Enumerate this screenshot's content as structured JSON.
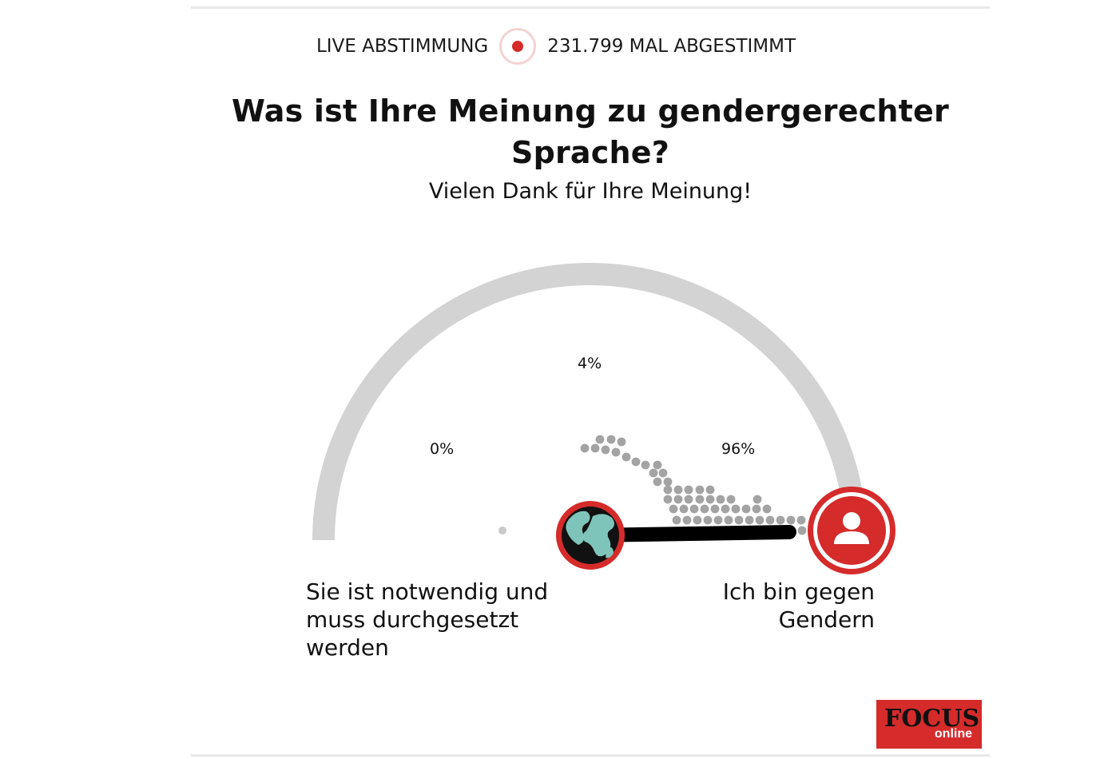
{
  "live": {
    "label": "LIVE ABSTIMMUNG",
    "count_text": "231.799 MAL ABGESTIMMT"
  },
  "poll": {
    "question": "Was ist Ihre Meinung zu gendergerechter Sprache?",
    "thanks": "Vielen Dank für Ihre Meinung!",
    "options": [
      {
        "label": "Sie ist notwendig und muss durchgesetzt werden",
        "percent_text": "0%",
        "percent": 0
      },
      {
        "label": "",
        "percent_text": "4%",
        "percent": 4
      },
      {
        "label": "Ich bin gegen Gendern",
        "percent_text": "96%",
        "percent": 96
      }
    ]
  },
  "icons": {
    "live": "record-dot-icon",
    "globe": "globe-icon",
    "user": "user-icon"
  },
  "colors": {
    "accent": "#d52b2b",
    "track": "#d3d3d3",
    "dots": "#a3a3a3",
    "needle": "#000000"
  },
  "logo": {
    "word": "FOCUS",
    "sub": "online"
  }
}
